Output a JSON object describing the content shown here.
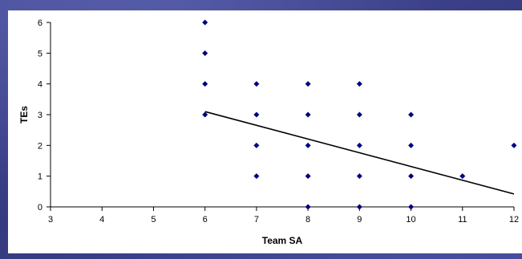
{
  "chart_data": {
    "type": "scatter",
    "xlabel": "Team SA",
    "ylabel": "TEs",
    "xlim": [
      3,
      12
    ],
    "ylim": [
      0,
      6
    ],
    "x_ticks": [
      "3",
      "4",
      "5",
      "6",
      "7",
      "8",
      "9",
      "10",
      "11",
      "12"
    ],
    "y_ticks": [
      "0",
      "1",
      "2",
      "3",
      "4",
      "5",
      "6"
    ],
    "grid": false,
    "legend": "none",
    "marker_color": "#000080",
    "points": [
      {
        "x": 6,
        "y": 3
      },
      {
        "x": 6,
        "y": 4
      },
      {
        "x": 6,
        "y": 5
      },
      {
        "x": 6,
        "y": 6
      },
      {
        "x": 7,
        "y": 1
      },
      {
        "x": 7,
        "y": 2
      },
      {
        "x": 7,
        "y": 3
      },
      {
        "x": 7,
        "y": 4
      },
      {
        "x": 8,
        "y": 0
      },
      {
        "x": 8,
        "y": 1
      },
      {
        "x": 8,
        "y": 2
      },
      {
        "x": 8,
        "y": 3
      },
      {
        "x": 8,
        "y": 4
      },
      {
        "x": 9,
        "y": 0
      },
      {
        "x": 9,
        "y": 1
      },
      {
        "x": 9,
        "y": 2
      },
      {
        "x": 9,
        "y": 3
      },
      {
        "x": 9,
        "y": 4
      },
      {
        "x": 10,
        "y": 0
      },
      {
        "x": 10,
        "y": 1
      },
      {
        "x": 10,
        "y": 2
      },
      {
        "x": 10,
        "y": 3
      },
      {
        "x": 11,
        "y": 1
      },
      {
        "x": 12,
        "y": 2
      }
    ],
    "trendline": {
      "type": "linear",
      "color": "#000000",
      "points": [
        {
          "x": 6,
          "y": 3.1
        },
        {
          "x": 12,
          "y": 0.42
        }
      ]
    }
  }
}
